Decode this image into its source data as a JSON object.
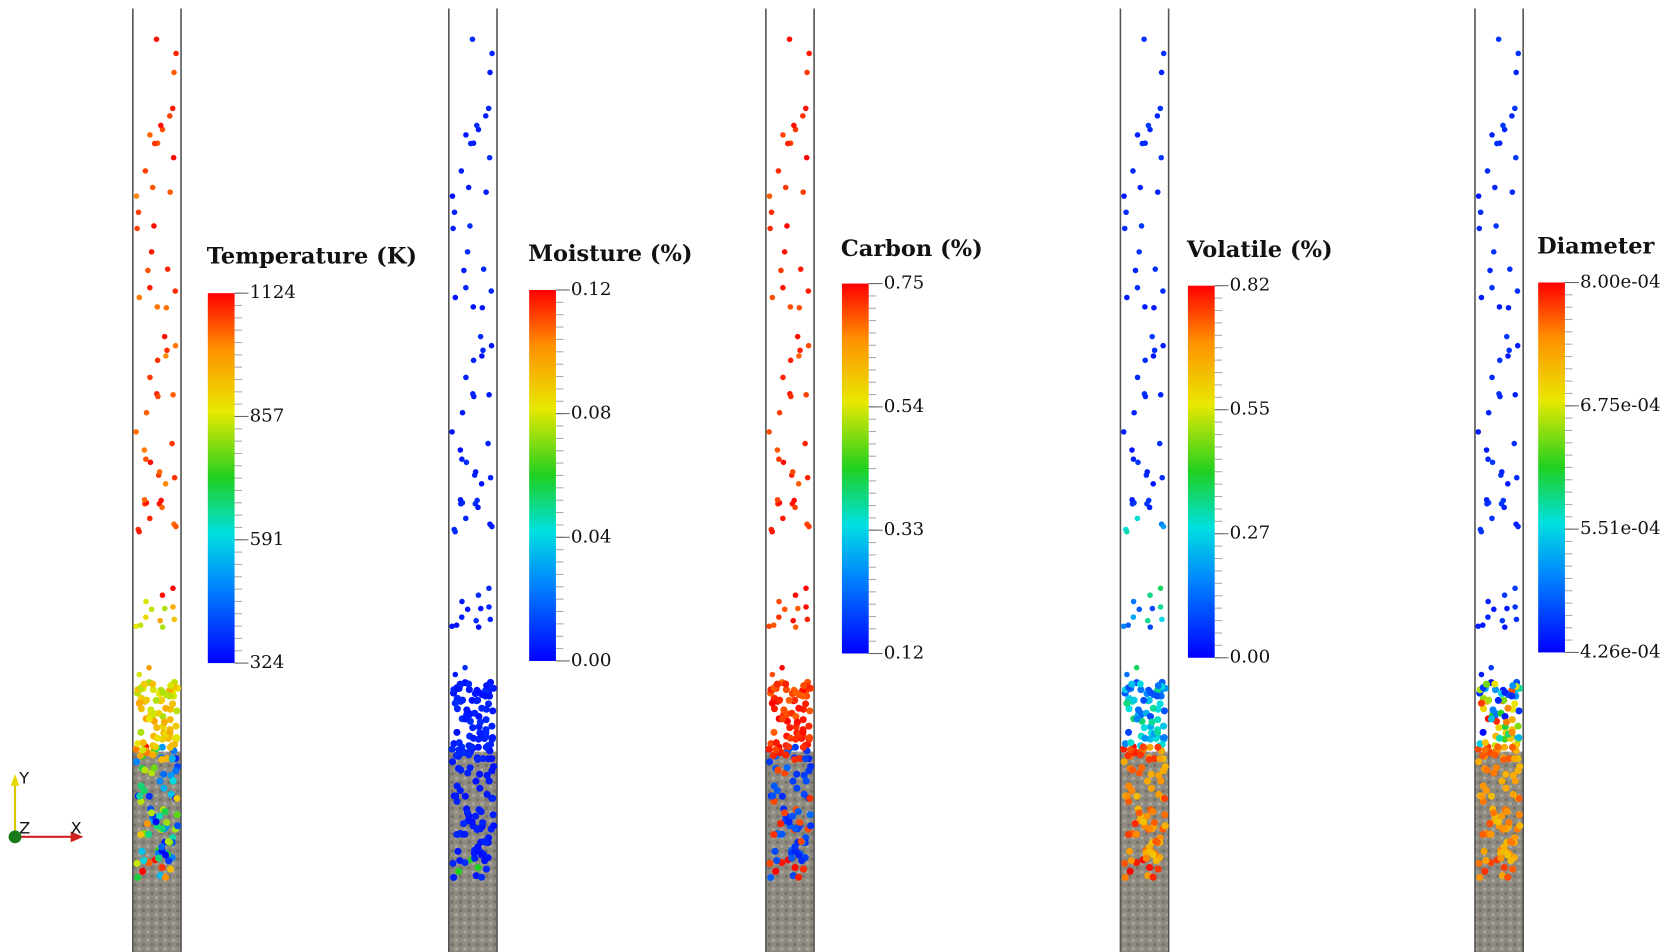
{
  "panels": [
    {
      "title": "Temperature (K)",
      "ticks": [
        "1124",
        "857",
        "591",
        "324"
      ]
    },
    {
      "title": "Moisture (%)",
      "ticks": [
        "0.12",
        "0.08",
        "0.04",
        "0.00"
      ]
    },
    {
      "title": "Carbon (%)",
      "ticks": [
        "0.75",
        "0.54",
        "0.33",
        "0.12"
      ]
    },
    {
      "title": "Volatile (%)",
      "ticks": [
        "0.82",
        "0.55",
        "0.27",
        "0.00"
      ]
    },
    {
      "title": "Diameter",
      "ticks": [
        "8.00e-04",
        "6.75e-04",
        "5.51e-04",
        "4.26e-04"
      ]
    }
  ],
  "axes_triad": {
    "y": "Y",
    "z": "Z",
    "x": "X"
  }
}
